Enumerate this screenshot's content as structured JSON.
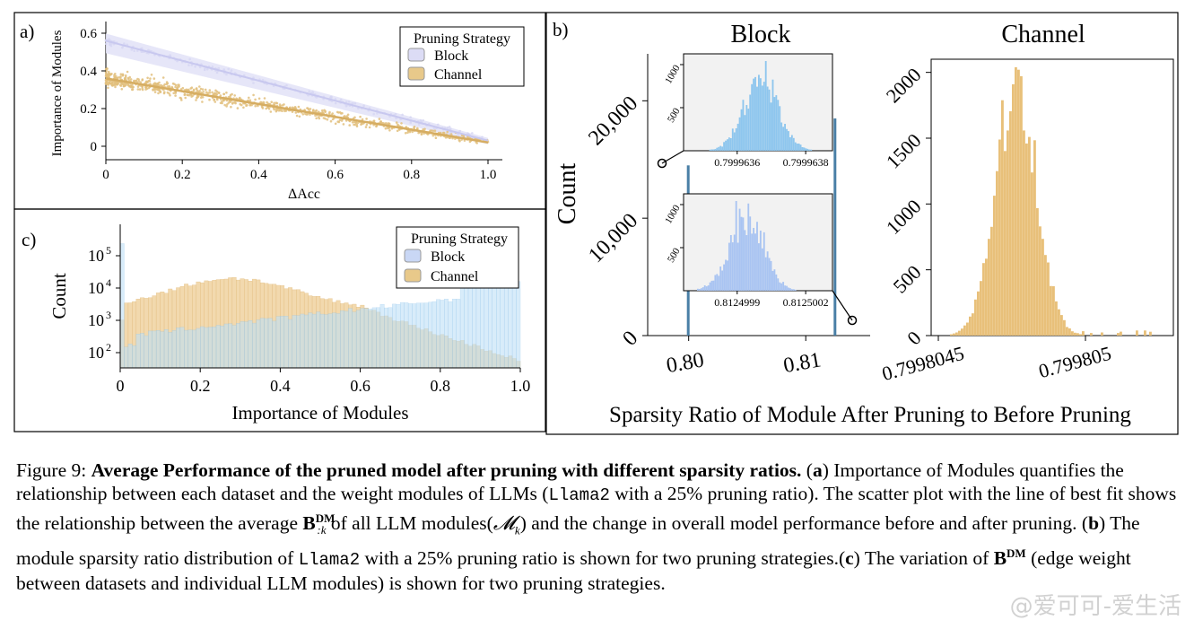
{
  "figure": {
    "panel_a": {
      "label": "a)",
      "ylabel": "Importance of Modules",
      "xlabel": "ΔAcc",
      "xticks": [
        "0",
        "0.2",
        "0.4",
        "0.6",
        "0.8",
        "1.0"
      ],
      "yticks": [
        "0",
        "0.2",
        "0.4",
        "0.6"
      ],
      "legend_title": "Pruning Strategy",
      "legend": [
        "Block",
        "Channel"
      ]
    },
    "panel_b": {
      "label": "b)",
      "block_title": "Block",
      "channel_title": "Channel",
      "ylabel": "Count",
      "xlabel": "Sparsity Ratio of Module After Pruning to Before Pruning",
      "block_yticks": [
        "0",
        "10,000",
        "20,000"
      ],
      "block_xticks": [
        "0.80",
        "0.81"
      ],
      "channel_yticks": [
        "0",
        "500",
        "1000",
        "1500",
        "2000"
      ],
      "channel_xticks": [
        "0.7998045",
        "0.799805"
      ],
      "inset_top_xticks": [
        "0.7999636",
        "0.7999638"
      ],
      "inset_top_yticks": [
        "500",
        "1000"
      ],
      "inset_bottom_xticks": [
        "0.8124999",
        "0.8125002"
      ],
      "inset_bottom_yticks": [
        "500",
        "1000"
      ]
    },
    "panel_c": {
      "label": "c)",
      "ylabel": "Count",
      "xlabel": "Importance of Modules",
      "xticks": [
        "0",
        "0.2",
        "0.4",
        "0.6",
        "0.8",
        "1.0"
      ],
      "yticks": [
        "10",
        "10",
        "10",
        "10"
      ],
      "ytick_exponents": [
        "2",
        "3",
        "4",
        "5"
      ],
      "legend_title": "Pruning Strategy",
      "legend": [
        "Block",
        "Channel"
      ]
    }
  },
  "caption": {
    "fig_label": "Figure 9:",
    "bold_title": "Average Performance of the pruned model after pruning with different sparsity ratios.",
    "a_open": "(",
    "a_letter": "a",
    "a_close": ")",
    "a_text": "Importance of Modules quantifies the relationship between each dataset and the weight modules of LLMs (",
    "model": "Llama2",
    "a_text2": "with a 25% pruning ratio). The scatter plot with the line of best fit shows the relationship between the average",
    "bdm": "B",
    "bdm_sup": "DM",
    "bdm_sub": ":k",
    "a_text3": "of all LLM modules(",
    "mk": "𝓜",
    "mk_sub": "k",
    "a_text4": ") and the change in overall model performance before and after pruning. (",
    "b_letter": "b",
    "b_text": ") The module sparsity ratio distribution of",
    "b_text2": "with a 25% pruning ratio is shown for two pruning strategies.(",
    "c_letter": "c",
    "c_text": ") The variation of",
    "c_bdm": "B",
    "c_bdm_sup": "DM",
    "c_text2": "(edge weight between datasets and individual LLM modules) is shown for two pruning strategies."
  },
  "watermark": "@爱可可-爱生活",
  "colors": {
    "block_fill": "#c9d7f5",
    "block_light": "#cfe6f7",
    "channel_fill": "#e8c98a",
    "block_bar": "#9ec9ee",
    "channel_bar": "#e8c07a",
    "inset_bg": "#f2f2f2"
  },
  "chart_data": [
    {
      "panel": "a",
      "type": "scatter",
      "xlabel": "ΔAcc",
      "ylabel": "Importance of Modules",
      "xlim": [
        0,
        1.0
      ],
      "ylim": [
        -0.03,
        0.65
      ],
      "series": [
        {
          "name": "Block",
          "fit_line": {
            "x": [
              0,
              1.0
            ],
            "y": [
              0.56,
              0.03
            ]
          }
        },
        {
          "name": "Channel",
          "fit_line": {
            "x": [
              0,
              1.0
            ],
            "y": [
              0.36,
              0.02
            ]
          }
        }
      ]
    },
    {
      "panel": "b-block",
      "type": "bar",
      "title": "Block",
      "xlim": [
        0.7965,
        0.8155
      ],
      "ylim": [
        0,
        24000
      ],
      "series": [
        {
          "name": "Block",
          "x": [
            0.79996,
            0.8125
          ],
          "values": [
            14500,
            18500
          ]
        }
      ]
    },
    {
      "panel": "b-channel",
      "type": "bar",
      "title": "Channel",
      "ylim": [
        0,
        2100
      ]
    },
    {
      "panel": "c",
      "type": "bar",
      "xlabel": "Importance of Modules",
      "ylabel": "Count",
      "xlim": [
        0,
        1.0
      ],
      "log_y": true,
      "series": [
        {
          "name": "Block"
        },
        {
          "name": "Channel"
        }
      ]
    }
  ]
}
